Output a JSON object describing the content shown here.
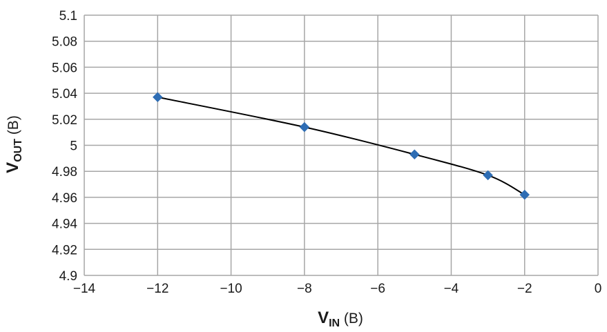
{
  "chart_data": {
    "type": "scatter",
    "title": "",
    "xlabel": {
      "main": "V",
      "sub": "IN",
      "unit": " (B)"
    },
    "ylabel": {
      "main": "V",
      "sub": "OUT",
      "unit": " (B)"
    },
    "xlim": [
      -14,
      0
    ],
    "ylim": [
      4.9,
      5.1
    ],
    "xticks": [
      -14,
      -12,
      -10,
      -8,
      -6,
      -4,
      -2,
      0
    ],
    "xtick_labels": [
      "−14",
      "−12",
      "−10",
      "−8",
      "−6",
      "−4",
      "−2",
      "0"
    ],
    "yticks": [
      4.9,
      4.92,
      4.94,
      4.96,
      4.98,
      5.0,
      5.02,
      5.04,
      5.06,
      5.08,
      5.1
    ],
    "ytick_labels": [
      "4.9",
      "4.92",
      "4.94",
      "4.96",
      "4.98",
      "5",
      "5.02",
      "5.04",
      "5.06",
      "5.08",
      "5.1"
    ],
    "grid": true,
    "series": [
      {
        "x": [
          -12,
          -8,
          -5,
          -3,
          -2
        ],
        "y": [
          5.037,
          5.014,
          4.993,
          4.977,
          4.962
        ],
        "marker": "diamond",
        "marker_color": "#2e6db4",
        "line_color": "#000000",
        "smooth": true
      }
    ]
  }
}
